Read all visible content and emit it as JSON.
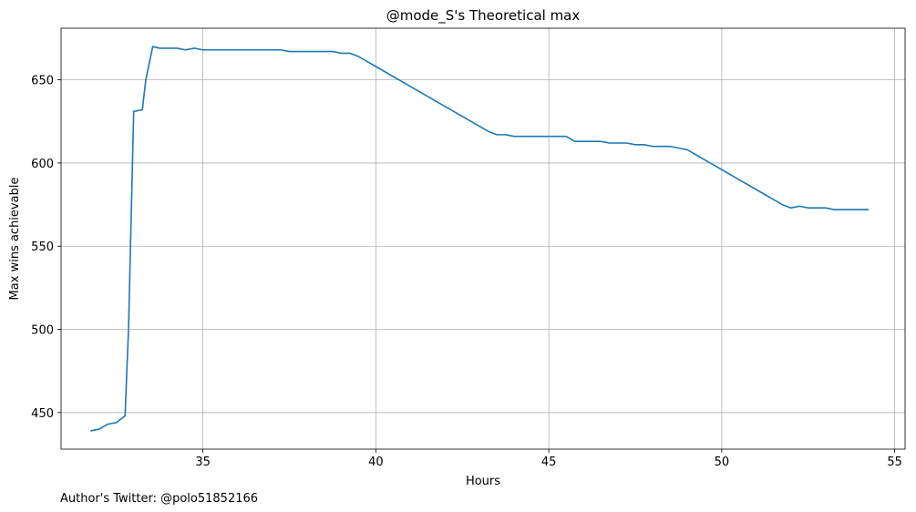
{
  "chart_data": {
    "type": "line",
    "title": "@mode_S's Theoretical max",
    "xlabel": "Hours",
    "ylabel": "Max wins achievable",
    "footnote": "Author's Twitter: @polo51852166",
    "xlim": [
      30.9,
      55.3
    ],
    "ylim": [
      428,
      681
    ],
    "x_ticks": [
      35,
      40,
      45,
      50,
      55
    ],
    "y_ticks": [
      450,
      500,
      550,
      600,
      650
    ],
    "grid": true,
    "line_color": "#1f77b4",
    "series": [
      {
        "x": [
          31.75,
          32.0,
          32.25,
          32.5,
          32.75,
          32.85,
          33.0,
          33.25,
          33.35,
          33.55,
          33.75,
          34.0,
          34.25,
          34.5,
          34.75,
          35.0,
          36.0,
          37.25,
          37.5,
          38.0,
          38.75,
          39.0,
          39.25,
          39.5,
          39.75,
          40.0,
          41.0,
          42.0,
          43.0,
          43.25,
          43.5,
          43.75,
          44.0,
          44.5,
          45.0,
          45.5,
          45.75,
          46.0,
          46.5,
          46.75,
          47.0,
          47.25,
          47.5,
          47.75,
          48.0,
          48.25,
          48.5,
          48.75,
          49.0,
          49.5,
          50.0,
          50.5,
          51.0,
          51.5,
          51.75,
          52.0,
          52.25,
          52.5,
          52.75,
          53.0,
          53.25,
          53.5,
          54.0,
          54.25
        ],
        "y": [
          439,
          440,
          443,
          444,
          448,
          500,
          631,
          632,
          650,
          670,
          669,
          669,
          669,
          668,
          669,
          668,
          668,
          668,
          667,
          667,
          667,
          666,
          666,
          664,
          661,
          658,
          646,
          634,
          622,
          619,
          617,
          617,
          616,
          616,
          616,
          616,
          613,
          613,
          613,
          612,
          612,
          612,
          611,
          611,
          610,
          610,
          610,
          609,
          608,
          602,
          596,
          590,
          584,
          578,
          575,
          573,
          574,
          573,
          573,
          573,
          572,
          572,
          572,
          572
        ]
      }
    ]
  }
}
